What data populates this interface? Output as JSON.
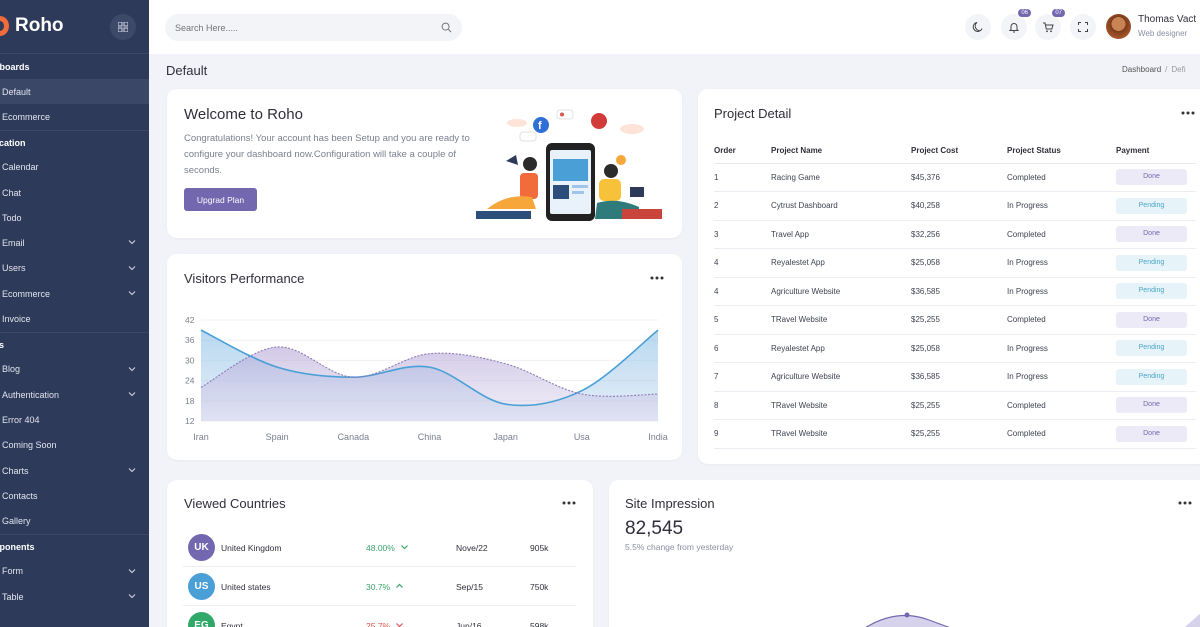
{
  "brand": {
    "name": "Roho"
  },
  "sidebar": {
    "sections": [
      {
        "title": "hboards",
        "items": [
          {
            "label": "Default",
            "active": true,
            "chevron": false
          },
          {
            "label": "Ecommerce",
            "active": false,
            "chevron": false
          }
        ]
      },
      {
        "title": "lication",
        "items": [
          {
            "label": "Calendar",
            "chevron": false
          },
          {
            "label": "Chat",
            "chevron": false
          },
          {
            "label": "Todo",
            "chevron": false
          },
          {
            "label": "Email",
            "chevron": true
          },
          {
            "label": "Users",
            "chevron": true
          },
          {
            "label": "Ecommerce",
            "chevron": true
          },
          {
            "label": "Invoice",
            "chevron": false
          }
        ]
      },
      {
        "title": "es",
        "items": [
          {
            "label": "Blog",
            "chevron": true
          },
          {
            "label": "Authentication",
            "chevron": true
          },
          {
            "label": "Error 404",
            "chevron": false
          },
          {
            "label": "Coming Soon",
            "chevron": false
          },
          {
            "label": "Charts",
            "chevron": true
          },
          {
            "label": "Contacts",
            "chevron": false
          },
          {
            "label": "Gallery",
            "chevron": false
          }
        ]
      },
      {
        "title": "nponents",
        "items": [
          {
            "label": "Form",
            "chevron": true
          },
          {
            "label": "Table",
            "chevron": true
          }
        ]
      }
    ]
  },
  "topbar": {
    "search_placeholder": "Search Here.....",
    "notifications_badge": "06",
    "cart_badge": "07",
    "user_name": "Thomas Vact",
    "user_role": "Web designer",
    "icons": [
      "moon-icon",
      "bell-icon",
      "cart-icon",
      "fullscreen-icon",
      "search-icon"
    ]
  },
  "page": {
    "title": "Default",
    "breadcrumb_root": "Dashboard",
    "breadcrumb_sep": "/",
    "breadcrumb_current": "Defi"
  },
  "welcome": {
    "title": "Welcome to Roho",
    "text": "Congratulations! Your account has been Setup and you are ready to configure your dashboard now.Configuration will take a couple of seconds.",
    "button": "Upgrad Plan"
  },
  "visitors": {
    "title": "Visitors Performance",
    "chart_data": {
      "type": "area",
      "categories": [
        "Iran",
        "Spain",
        "Canada",
        "China",
        "Japan",
        "Usa",
        "India"
      ],
      "ylim": [
        12,
        42
      ],
      "yticks": [
        42,
        36,
        30,
        24,
        18,
        12
      ],
      "series": [
        {
          "values": [
            39,
            28,
            25,
            28,
            17,
            21,
            39
          ],
          "color": "#4a9fd6"
        },
        {
          "values": [
            22,
            34,
            25,
            32,
            29,
            20,
            20
          ],
          "color": "#8c7bb8"
        }
      ]
    }
  },
  "project": {
    "title": "Project Detail",
    "columns": [
      "Order",
      "Project Name",
      "Project Cost",
      "Project Status",
      "Payment"
    ],
    "rows": [
      [
        "1",
        "Racing Game",
        "$45,376",
        "Completed",
        "Done"
      ],
      [
        "2",
        "Cytrust Dashboard",
        "$40,258",
        "In Progress",
        "Pending"
      ],
      [
        "3",
        "Travel App",
        "$32,256",
        "Completed",
        "Done"
      ],
      [
        "4",
        "Reyalestet App",
        "$25,058",
        "In Progress",
        "Pending"
      ],
      [
        "4",
        "Agriculture Website",
        "$36,585",
        "In Progress",
        "Pending"
      ],
      [
        "5",
        "TRavel Website",
        "$25,255",
        "Completed",
        "Done"
      ],
      [
        "6",
        "Reyalestet App",
        "$25,058",
        "In Progress",
        "Pending"
      ],
      [
        "7",
        "Agriculture Website",
        "$36,585",
        "In Progress",
        "Pending"
      ],
      [
        "8",
        "TRavel Website",
        "$25,255",
        "Completed",
        "Done"
      ],
      [
        "9",
        "TRavel Website",
        "$25,255",
        "Completed",
        "Done"
      ]
    ]
  },
  "countries": {
    "title": "Viewed Countries",
    "rows": [
      {
        "code": "UK",
        "name": "United Kingdom",
        "pct": "48.00%",
        "trend": "down",
        "date": "Nove/22",
        "value": "905k",
        "flag_color": "#7367b0",
        "pct_color": "#3aa36b"
      },
      {
        "code": "US",
        "name": "United states",
        "pct": "30.7%",
        "trend": "up",
        "date": "Sep/15",
        "value": "750k",
        "flag_color": "#4a9fd6",
        "pct_color": "#3aa36b"
      },
      {
        "code": "EG",
        "name": "Egypt",
        "pct": "25.7%",
        "trend": "down",
        "date": "Jun/16",
        "value": "598k",
        "flag_color": "#2fa86a",
        "pct_color": "#e05454"
      }
    ]
  },
  "impression": {
    "title": "Site Impression",
    "value": "82,545",
    "subtitle": "5.5% change from yesterday"
  },
  "colors": {
    "accent": "#7367b0",
    "sidebar": "#2e3a59"
  }
}
